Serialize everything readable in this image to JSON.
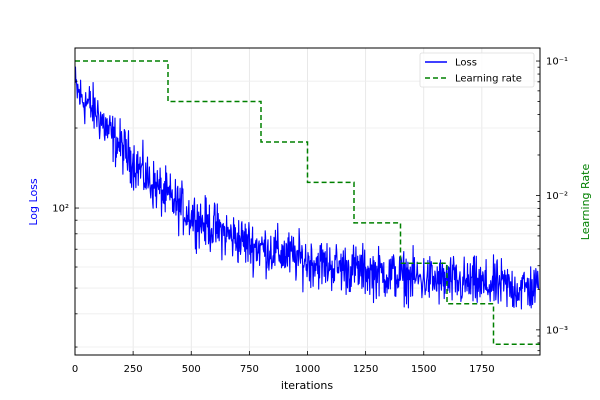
{
  "chart_data": {
    "type": "line",
    "xlabel": "iterations",
    "ylabel_left": "Log Loss",
    "ylabel_right": "Learning Rate",
    "xlim": [
      0,
      2000
    ],
    "x_ticks": [
      0,
      250,
      500,
      750,
      1000,
      1250,
      1500,
      1750
    ],
    "x_tick_labels": [
      "0",
      "250",
      "500",
      "750",
      "1000",
      "1250",
      "1500",
      "1750"
    ],
    "ylim_left": [
      28,
      400
    ],
    "y_scale_left": "log",
    "y_major_ticks_left": [
      100
    ],
    "y_major_tick_labels_left": [
      "10²"
    ],
    "ylim_right": [
      0.00065,
      0.125
    ],
    "y_scale_right": "log",
    "y_major_ticks_right": [
      0.001,
      0.01,
      0.1
    ],
    "y_major_tick_labels_right": [
      "10⁻³",
      "10⁻²",
      "10⁻¹"
    ],
    "grid": true,
    "legend_position": "top-right",
    "series": [
      {
        "name": "Loss",
        "color": "#0000ff",
        "line_style": "solid",
        "x": [
          0,
          25,
          50,
          75,
          100,
          125,
          150,
          175,
          200,
          225,
          250,
          275,
          300,
          325,
          350,
          375,
          400,
          425,
          450,
          475,
          500,
          525,
          550,
          575,
          600,
          625,
          650,
          675,
          700,
          725,
          750,
          775,
          800,
          825,
          850,
          875,
          900,
          925,
          950,
          975,
          1000,
          1025,
          1050,
          1075,
          1100,
          1125,
          1150,
          1175,
          1200,
          1225,
          1250,
          1275,
          1300,
          1325,
          1350,
          1375,
          1400,
          1425,
          1450,
          1475,
          1500,
          1525,
          1550,
          1575,
          1600,
          1625,
          1650,
          1675,
          1700,
          1725,
          1750,
          1775,
          1800,
          1825,
          1850,
          1875,
          1900,
          1925,
          1950,
          1975,
          1995
        ],
        "values": [
          285,
          260,
          250,
          235,
          225,
          205,
          190,
          178,
          170,
          158,
          150,
          142,
          132,
          125,
          120,
          114,
          110,
          105,
          101,
          97,
          94,
          91,
          88,
          86,
          84,
          82,
          80,
          78,
          76,
          75,
          73,
          72,
          71,
          70,
          69,
          68,
          67,
          66,
          65,
          64,
          63,
          63,
          62,
          61,
          61,
          60,
          60,
          59,
          59,
          58,
          58,
          57,
          57,
          57,
          56,
          56,
          55,
          55,
          55,
          54,
          54,
          54,
          53,
          53,
          53,
          53,
          52,
          52,
          52,
          52,
          51,
          51,
          51,
          51,
          51,
          50,
          50,
          50,
          50,
          50,
          50
        ],
        "noise_amplitude": 0.32
      },
      {
        "name": "Learning rate",
        "color": "#008000",
        "line_style": "dashed",
        "x": [
          0,
          400,
          400,
          800,
          800,
          1000,
          1000,
          1200,
          1200,
          1400,
          1400,
          1600,
          1600,
          1800,
          1800,
          2000
        ],
        "values": [
          0.1,
          0.1,
          0.05,
          0.05,
          0.025,
          0.025,
          0.0125,
          0.0125,
          0.00625,
          0.00625,
          0.003125,
          0.003125,
          0.0015625,
          0.0015625,
          0.00078125,
          0.00078125
        ]
      }
    ]
  }
}
